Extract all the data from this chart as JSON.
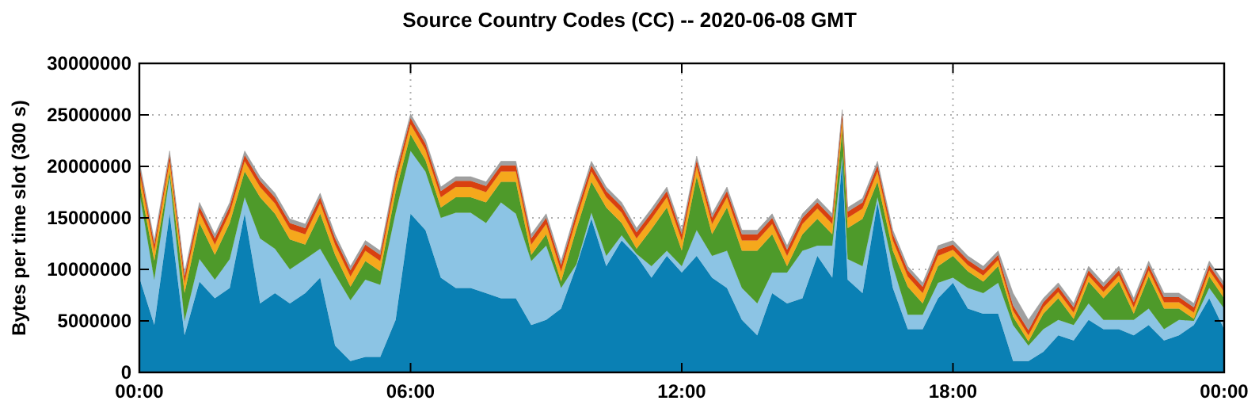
{
  "chart_data": {
    "type": "area",
    "stacked": true,
    "title": "Source Country Codes (CC) -- 2020-06-08 GMT",
    "ylabel": "Bytes per time slot (300 s)",
    "x": [
      0,
      0.33,
      0.67,
      1,
      1.33,
      1.67,
      2,
      2.33,
      2.67,
      3,
      3.33,
      3.67,
      4,
      4.33,
      4.67,
      5,
      5.33,
      5.67,
      6,
      6.33,
      6.67,
      7,
      7.33,
      7.67,
      8,
      8.33,
      8.67,
      9,
      9.33,
      9.67,
      10,
      10.33,
      10.67,
      11,
      11.33,
      11.67,
      12,
      12.33,
      12.67,
      13,
      13.33,
      13.67,
      14,
      14.33,
      14.67,
      15,
      15.33,
      15.55,
      15.67,
      16,
      16.33,
      16.67,
      17,
      17.33,
      17.67,
      18,
      18.33,
      18.67,
      19,
      19.33,
      19.67,
      20,
      20.33,
      20.67,
      21,
      21.33,
      21.67,
      22,
      22.33,
      22.67,
      23,
      23.33,
      23.67,
      24
    ],
    "series": [
      {
        "color": "#0a80b4",
        "values": [
          9200000,
          4600000,
          15400000,
          3600000,
          8800000,
          7200000,
          8200000,
          15400000,
          6700000,
          7700000,
          6700000,
          7700000,
          9200000,
          2600000,
          1100000,
          1500000,
          1500000,
          5100000,
          15400000,
          13800000,
          9200000,
          8200000,
          8200000,
          7700000,
          7200000,
          7200000,
          4600000,
          5100000,
          6200000,
          10300000,
          14900000,
          10300000,
          12800000,
          11300000,
          9200000,
          11300000,
          9700000,
          11300000,
          9200000,
          8200000,
          5100000,
          3600000,
          7700000,
          6700000,
          7200000,
          11300000,
          9200000,
          20500000,
          9000000,
          7700000,
          16500000,
          8200000,
          4200000,
          4200000,
          7200000,
          8700000,
          6200000,
          5700000,
          5700000,
          1100000,
          1100000,
          2000000,
          3600000,
          3100000,
          5100000,
          4200000,
          4200000,
          3600000,
          4600000,
          3100000,
          3600000,
          4600000,
          7200000,
          4200000
        ]
      },
      {
        "color": "#8cc4e4",
        "values": [
          8300000,
          4400000,
          3600000,
          1400000,
          2200000,
          1800000,
          2800000,
          1600000,
          6300000,
          4300000,
          3300000,
          3300000,
          2800000,
          6900000,
          5900000,
          7500000,
          7000000,
          10400000,
          6100000,
          5700000,
          5800000,
          7300000,
          7300000,
          6800000,
          9300000,
          8200000,
          6200000,
          7200000,
          2000000,
          200000,
          600000,
          1000000,
          500000,
          200000,
          1100000,
          500000,
          600000,
          2500000,
          2100000,
          3600000,
          3100000,
          3100000,
          2000000,
          3000000,
          4600000,
          1000000,
          3100000,
          500000,
          2000000,
          2600000,
          500000,
          2100000,
          1400000,
          1400000,
          1500000,
          500000,
          2000000,
          2000000,
          3000000,
          3500000,
          1500000,
          2200000,
          1500000,
          1500000,
          1600000,
          900000,
          900000,
          1500000,
          1600000,
          1100000,
          1500000,
          400000,
          1000000,
          2000000
        ]
      },
      {
        "color": "#4e9a2a",
        "values": [
          1000000,
          1800000,
          500000,
          2700000,
          3500000,
          2400000,
          3500000,
          2500000,
          4000000,
          3400000,
          2900000,
          1400000,
          3400000,
          1900000,
          1300000,
          1800000,
          1300000,
          2000000,
          1600000,
          1100000,
          1000000,
          1500000,
          1500000,
          2000000,
          2000000,
          3100000,
          600000,
          1100000,
          600000,
          3400000,
          3000000,
          4700000,
          1200000,
          500000,
          3600000,
          4200000,
          1500000,
          5200000,
          2100000,
          4200000,
          3600000,
          5100000,
          3700000,
          600000,
          1600000,
          2600000,
          1100000,
          2500000,
          3000000,
          4600000,
          1500000,
          1500000,
          2700000,
          1100000,
          1600000,
          2100000,
          1600000,
          1100000,
          1600000,
          800000,
          400000,
          1500000,
          2100000,
          600000,
          2100000,
          2100000,
          3700000,
          600000,
          3100000,
          2000000,
          1100000,
          200000,
          1100000,
          1000000
        ]
      },
      {
        "color": "#f5a81c",
        "values": [
          1000000,
          1000000,
          1000000,
          1000000,
          1000000,
          1000000,
          1000000,
          1000000,
          1000000,
          1000000,
          1000000,
          1000000,
          1000000,
          1000000,
          1000000,
          1000000,
          1000000,
          1000000,
          1000000,
          1000000,
          1000000,
          1000000,
          1000000,
          1000000,
          1000000,
          1000000,
          1000000,
          1000000,
          1000000,
          1000000,
          1000000,
          1000000,
          1000000,
          1000000,
          1000000,
          1000000,
          1000000,
          1000000,
          1000000,
          1000000,
          1000000,
          1000000,
          1000000,
          1000000,
          1000000,
          1000000,
          1000000,
          1000000,
          1000000,
          1000000,
          1000000,
          1000000,
          1000000,
          1000000,
          1000000,
          600000,
          600000,
          600000,
          600000,
          600000,
          600000,
          600000,
          600000,
          600000,
          600000,
          600000,
          600000,
          600000,
          600000,
          600000,
          600000,
          600000,
          600000,
          600000
        ]
      },
      {
        "color": "#d94010",
        "values": [
          600000,
          600000,
          600000,
          600000,
          600000,
          600000,
          600000,
          600000,
          600000,
          600000,
          600000,
          600000,
          600000,
          600000,
          600000,
          600000,
          600000,
          600000,
          600000,
          600000,
          600000,
          600000,
          600000,
          600000,
          600000,
          600000,
          600000,
          600000,
          600000,
          600000,
          600000,
          600000,
          600000,
          600000,
          600000,
          600000,
          600000,
          600000,
          600000,
          600000,
          600000,
          600000,
          600000,
          600000,
          600000,
          600000,
          600000,
          600000,
          600000,
          600000,
          600000,
          600000,
          600000,
          600000,
          600000,
          500000,
          500000,
          500000,
          500000,
          500000,
          500000,
          500000,
          500000,
          500000,
          500000,
          500000,
          500000,
          500000,
          500000,
          500000,
          500000,
          500000,
          500000,
          500000
        ]
      },
      {
        "color": "#a0a0a0",
        "values": [
          400000,
          400000,
          400000,
          400000,
          400000,
          400000,
          400000,
          400000,
          400000,
          400000,
          400000,
          400000,
          400000,
          400000,
          400000,
          400000,
          400000,
          400000,
          400000,
          400000,
          400000,
          400000,
          400000,
          400000,
          400000,
          400000,
          400000,
          400000,
          400000,
          400000,
          400000,
          400000,
          400000,
          400000,
          400000,
          400000,
          400000,
          400000,
          400000,
          400000,
          400000,
          400000,
          400000,
          400000,
          400000,
          400000,
          400000,
          400000,
          400000,
          400000,
          400000,
          400000,
          400000,
          400000,
          400000,
          400000,
          400000,
          400000,
          400000,
          1200000,
          1000000,
          400000,
          400000,
          400000,
          400000,
          400000,
          400000,
          400000,
          400000,
          400000,
          400000,
          400000,
          400000,
          400000
        ]
      }
    ],
    "xlim": [
      0,
      24
    ],
    "ylim": [
      0,
      30000000
    ],
    "xticks": [
      {
        "value": 0,
        "label": "00:00"
      },
      {
        "value": 6,
        "label": "06:00"
      },
      {
        "value": 12,
        "label": "12:00"
      },
      {
        "value": 18,
        "label": "18:00"
      },
      {
        "value": 24,
        "label": "00:00"
      }
    ],
    "yticks": [
      0,
      5000000,
      10000000,
      15000000,
      20000000,
      25000000,
      30000000
    ],
    "grid": true
  }
}
